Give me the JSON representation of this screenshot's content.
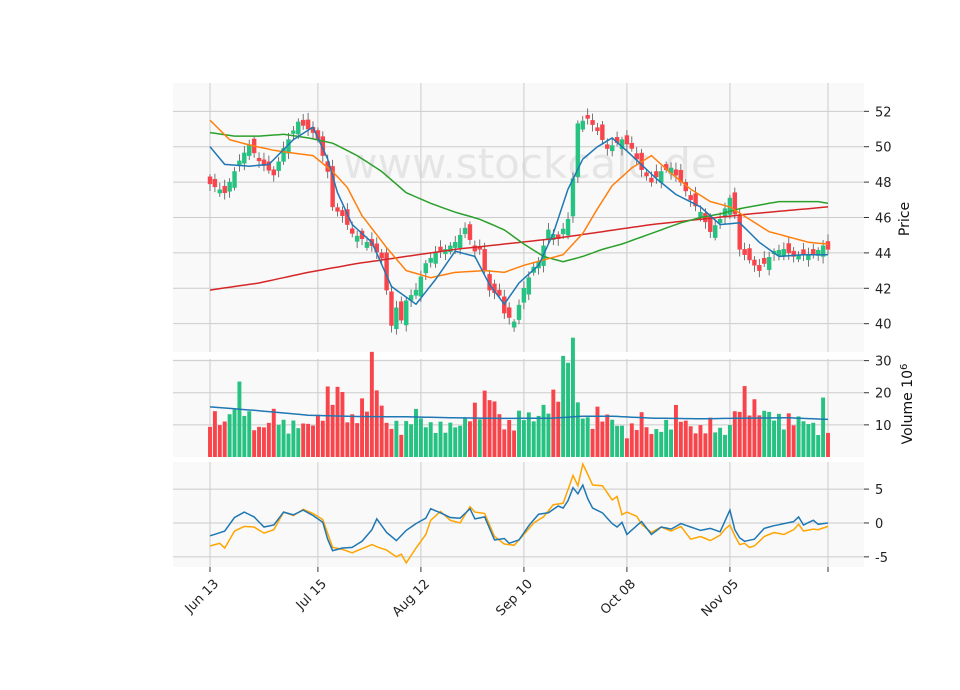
{
  "chart_data": {
    "type": "candlestick",
    "watermark": "www.stockcalc.de",
    "dates": [
      "Jun 13",
      "Jul 15",
      "Aug 12",
      "Sep 10",
      "Oct 08",
      "Nov 05"
    ],
    "date_tick_positions": [
      0,
      22,
      43,
      64,
      85,
      106
    ],
    "n_bars": 127,
    "price_axis": {
      "label": "Price",
      "ticks": [
        40,
        42,
        44,
        46,
        48,
        50,
        52
      ],
      "ylim": [
        38.4,
        53.6
      ]
    },
    "volume_axis": {
      "label": "Volume",
      "unit_exponent": "6",
      "ticks": [
        10,
        20,
        30
      ],
      "ylim": [
        0,
        30.5
      ]
    },
    "oscillator_axis": {
      "ticks": [
        -5,
        0,
        5
      ],
      "ylim": [
        -6.5,
        9
      ]
    },
    "colors": {
      "up": "#26c281",
      "down": "#f8454c",
      "ma_blue": "#1f77b4",
      "ma_orange": "#ff7f0e",
      "ma_green": "#2ca02c",
      "ma_red": "#d62728",
      "osc_a": "#1f77b4",
      "osc_b": "#ffa500",
      "grid": "#cccccc",
      "panel_bg": "#f9f9f9"
    },
    "close_anchors": [
      [
        0,
        47.9
      ],
      [
        3,
        47.4
      ],
      [
        6,
        49.2
      ],
      [
        8,
        50.1
      ],
      [
        10,
        49.2
      ],
      [
        13,
        48.4
      ],
      [
        15,
        49.9
      ],
      [
        18,
        51.4
      ],
      [
        20,
        51.0
      ],
      [
        21,
        50.8
      ],
      [
        22,
        50.4
      ],
      [
        24,
        48.6
      ],
      [
        25,
        46.6
      ],
      [
        27,
        46.1
      ],
      [
        29,
        45.1
      ],
      [
        31,
        44.8
      ],
      [
        33,
        44.4
      ],
      [
        35,
        43.7
      ],
      [
        36,
        41.9
      ],
      [
        37,
        39.9
      ],
      [
        38,
        40.9
      ],
      [
        39,
        40.2
      ],
      [
        40,
        41.3
      ],
      [
        42,
        41.9
      ],
      [
        44,
        43.4
      ],
      [
        46,
        44.0
      ],
      [
        48,
        44.2
      ],
      [
        50,
        44.6
      ],
      [
        52,
        45.4
      ],
      [
        54,
        44.1
      ],
      [
        55,
        44.2
      ],
      [
        57,
        41.9
      ],
      [
        59,
        41.6
      ],
      [
        60,
        40.6
      ],
      [
        62,
        40.1
      ],
      [
        64,
        42.0
      ],
      [
        66,
        43.2
      ],
      [
        67,
        43.5
      ],
      [
        69,
        45.3
      ],
      [
        71,
        44.8
      ],
      [
        73,
        45.9
      ],
      [
        74,
        48.2
      ],
      [
        75,
        51.3
      ],
      [
        77,
        51.6
      ],
      [
        79,
        50.9
      ],
      [
        81,
        49.9
      ],
      [
        84,
        50.4
      ],
      [
        86,
        49.9
      ],
      [
        88,
        48.7
      ],
      [
        90,
        48.0
      ],
      [
        92,
        48.6
      ],
      [
        94,
        48.8
      ],
      [
        96,
        48.0
      ],
      [
        98,
        47.0
      ],
      [
        100,
        46.3
      ],
      [
        102,
        45.2
      ],
      [
        104,
        45.9
      ],
      [
        106,
        47.1
      ],
      [
        107,
        46.2
      ],
      [
        108,
        44.2
      ],
      [
        110,
        43.6
      ],
      [
        112,
        43.0
      ],
      [
        113,
        43.4
      ],
      [
        115,
        44.1
      ],
      [
        117,
        44.2
      ],
      [
        119,
        43.8
      ],
      [
        121,
        43.9
      ],
      [
        123,
        43.9
      ],
      [
        125,
        44.4
      ],
      [
        126,
        44.2
      ]
    ],
    "volume_anchors": [
      [
        0,
        12.5
      ],
      [
        3,
        9.5
      ],
      [
        5,
        14.5
      ],
      [
        6,
        19.3
      ],
      [
        8,
        11.4
      ],
      [
        10,
        7.8
      ],
      [
        12,
        9.8
      ],
      [
        13,
        12.7
      ],
      [
        15,
        9.3
      ],
      [
        20,
        9.1
      ],
      [
        22,
        10.7
      ],
      [
        24,
        17.6
      ],
      [
        27,
        18.8
      ],
      [
        28,
        10.2
      ],
      [
        30,
        12.0
      ],
      [
        32,
        17.2
      ],
      [
        33,
        26.8
      ],
      [
        35,
        14.3
      ],
      [
        36,
        9.2
      ],
      [
        40,
        9.0
      ],
      [
        42,
        12.8
      ],
      [
        44,
        9.0
      ],
      [
        47,
        8.8
      ],
      [
        51,
        8.9
      ],
      [
        57,
        18.3
      ],
      [
        60,
        8.6
      ],
      [
        62,
        10.2
      ],
      [
        64,
        12.9
      ],
      [
        66,
        10.4
      ],
      [
        70,
        16.8
      ],
      [
        72,
        25.7
      ],
      [
        74,
        33.0
      ],
      [
        75,
        14.8
      ],
      [
        77,
        10.0
      ],
      [
        79,
        12.6
      ],
      [
        82,
        10.6
      ],
      [
        85,
        6.8
      ],
      [
        88,
        11.5
      ],
      [
        90,
        6.5
      ],
      [
        93,
        9.3
      ],
      [
        95,
        13.1
      ],
      [
        97,
        9.8
      ],
      [
        99,
        7.3
      ],
      [
        102,
        9.8
      ],
      [
        105,
        6.5
      ],
      [
        107,
        12.0
      ],
      [
        108,
        15.6
      ],
      [
        109,
        17.7
      ],
      [
        112,
        13.1
      ],
      [
        114,
        12.3
      ],
      [
        116,
        10.9
      ],
      [
        118,
        10.9
      ],
      [
        120,
        10.7
      ],
      [
        122,
        9.8
      ],
      [
        124,
        7.9
      ],
      [
        125,
        14.8
      ],
      [
        126,
        9.0
      ]
    ],
    "volume_ma_anchors": [
      [
        0,
        15.6
      ],
      [
        10,
        14.4
      ],
      [
        20,
        13.0
      ],
      [
        30,
        12.6
      ],
      [
        40,
        12.5
      ],
      [
        50,
        12.2
      ],
      [
        60,
        12.0
      ],
      [
        70,
        12.1
      ],
      [
        76,
        12.7
      ],
      [
        82,
        12.7
      ],
      [
        90,
        12.1
      ],
      [
        100,
        11.9
      ],
      [
        110,
        12.1
      ],
      [
        118,
        12.2
      ],
      [
        126,
        11.7
      ]
    ],
    "ma_short_anchors": [
      [
        0,
        50.0
      ],
      [
        3,
        49.0
      ],
      [
        8,
        48.9
      ],
      [
        12,
        49.0
      ],
      [
        17,
        50.4
      ],
      [
        21,
        51.1
      ],
      [
        24,
        49.3
      ],
      [
        26,
        47.4
      ],
      [
        29,
        45.6
      ],
      [
        33,
        44.6
      ],
      [
        37,
        42.1
      ],
      [
        42,
        41.1
      ],
      [
        46,
        42.5
      ],
      [
        50,
        44.1
      ],
      [
        54,
        43.8
      ],
      [
        57,
        42.2
      ],
      [
        60,
        41.1
      ],
      [
        63,
        42.3
      ],
      [
        67,
        43.3
      ],
      [
        70,
        45.1
      ],
      [
        73,
        47.6
      ],
      [
        76,
        49.3
      ],
      [
        79,
        50.0
      ],
      [
        82,
        50.5
      ],
      [
        86,
        49.5
      ],
      [
        91,
        48.2
      ],
      [
        95,
        47.3
      ],
      [
        100,
        46.6
      ],
      [
        104,
        45.6
      ],
      [
        108,
        45.7
      ],
      [
        112,
        44.6
      ],
      [
        116,
        43.8
      ],
      [
        121,
        43.9
      ],
      [
        126,
        43.9
      ]
    ],
    "ma_mid_anchors": [
      [
        0,
        51.5
      ],
      [
        4,
        50.4
      ],
      [
        8,
        50.1
      ],
      [
        13,
        49.8
      ],
      [
        18,
        49.6
      ],
      [
        21,
        49.5
      ],
      [
        25,
        48.6
      ],
      [
        28,
        47.7
      ],
      [
        31,
        46.1
      ],
      [
        36,
        44.3
      ],
      [
        40,
        43.0
      ],
      [
        45,
        42.6
      ],
      [
        50,
        42.9
      ],
      [
        56,
        43.0
      ],
      [
        60,
        42.9
      ],
      [
        64,
        43.3
      ],
      [
        68,
        43.6
      ],
      [
        72,
        43.9
      ],
      [
        76,
        45.1
      ],
      [
        79,
        46.5
      ],
      [
        82,
        47.8
      ],
      [
        86,
        48.8
      ],
      [
        90,
        49.5
      ],
      [
        94,
        48.5
      ],
      [
        98,
        47.6
      ],
      [
        102,
        46.9
      ],
      [
        106,
        46.6
      ],
      [
        110,
        45.9
      ],
      [
        114,
        45.2
      ],
      [
        118,
        44.9
      ],
      [
        122,
        44.6
      ],
      [
        126,
        44.5
      ]
    ],
    "ma_long_anchors": [
      [
        0,
        50.8
      ],
      [
        5,
        50.6
      ],
      [
        10,
        50.6
      ],
      [
        15,
        50.7
      ],
      [
        20,
        50.5
      ],
      [
        25,
        50.2
      ],
      [
        30,
        49.5
      ],
      [
        35,
        48.6
      ],
      [
        40,
        47.4
      ],
      [
        45,
        46.8
      ],
      [
        50,
        46.3
      ],
      [
        55,
        45.9
      ],
      [
        60,
        45.3
      ],
      [
        64,
        44.5
      ],
      [
        68,
        43.8
      ],
      [
        72,
        43.5
      ],
      [
        76,
        43.8
      ],
      [
        80,
        44.2
      ],
      [
        84,
        44.5
      ],
      [
        88,
        44.9
      ],
      [
        92,
        45.3
      ],
      [
        96,
        45.7
      ],
      [
        100,
        46.0
      ],
      [
        104,
        46.2
      ],
      [
        108,
        46.5
      ],
      [
        112,
        46.7
      ],
      [
        116,
        46.9
      ],
      [
        120,
        46.9
      ],
      [
        124,
        46.9
      ],
      [
        126,
        46.8
      ]
    ],
    "ma_trend_anchors": [
      [
        0,
        41.9
      ],
      [
        10,
        42.3
      ],
      [
        20,
        42.9
      ],
      [
        30,
        43.4
      ],
      [
        40,
        43.8
      ],
      [
        50,
        44.2
      ],
      [
        60,
        44.5
      ],
      [
        70,
        44.8
      ],
      [
        80,
        45.2
      ],
      [
        90,
        45.6
      ],
      [
        100,
        45.9
      ],
      [
        110,
        46.2
      ],
      [
        126,
        46.6
      ]
    ],
    "osc_line_a_anchors": [
      [
        0,
        -1.9
      ],
      [
        3,
        -1.2
      ],
      [
        5,
        0.8
      ],
      [
        7,
        1.6
      ],
      [
        9,
        0.9
      ],
      [
        11,
        -0.6
      ],
      [
        13,
        -0.3
      ],
      [
        15,
        1.6
      ],
      [
        17,
        1.2
      ],
      [
        19,
        1.9
      ],
      [
        21,
        1.1
      ],
      [
        23,
        0.1
      ],
      [
        24,
        -2.4
      ],
      [
        25,
        -4.1
      ],
      [
        27,
        -3.7
      ],
      [
        29,
        -3.6
      ],
      [
        31,
        -2.7
      ],
      [
        33,
        -1.0
      ],
      [
        34,
        0.6
      ],
      [
        36,
        -1.4
      ],
      [
        38,
        -2.6
      ],
      [
        40,
        -1.1
      ],
      [
        42,
        -0.1
      ],
      [
        44,
        0.7
      ],
      [
        45,
        2.1
      ],
      [
        47,
        1.5
      ],
      [
        49,
        0.8
      ],
      [
        51,
        0.7
      ],
      [
        53,
        2.1
      ],
      [
        54,
        0.6
      ],
      [
        56,
        0.9
      ],
      [
        58,
        -2.5
      ],
      [
        60,
        -2.3
      ],
      [
        61,
        -3.0
      ],
      [
        63,
        -2.5
      ],
      [
        65,
        -0.4
      ],
      [
        67,
        1.3
      ],
      [
        69,
        1.5
      ],
      [
        71,
        2.5
      ],
      [
        72,
        2.2
      ],
      [
        73,
        3.3
      ],
      [
        74,
        5.2
      ],
      [
        75,
        4.3
      ],
      [
        76,
        5.6
      ],
      [
        77,
        3.6
      ],
      [
        78,
        2.2
      ],
      [
        80,
        1.5
      ],
      [
        82,
        -0.1
      ],
      [
        83,
        -0.6
      ],
      [
        84,
        0.1
      ],
      [
        85,
        -1.7
      ],
      [
        87,
        -0.4
      ],
      [
        88,
        0.2
      ],
      [
        90,
        -1.7
      ],
      [
        92,
        -0.6
      ],
      [
        94,
        -0.9
      ],
      [
        96,
        -0.1
      ],
      [
        98,
        -0.6
      ],
      [
        100,
        -1.1
      ],
      [
        102,
        -0.8
      ],
      [
        104,
        -1.3
      ],
      [
        105,
        0.3
      ],
      [
        106,
        1.9
      ],
      [
        107,
        -1.0
      ],
      [
        108,
        -2.2
      ],
      [
        109,
        -2.7
      ],
      [
        111,
        -2.4
      ],
      [
        113,
        -0.8
      ],
      [
        115,
        -0.4
      ],
      [
        117,
        -0.1
      ],
      [
        119,
        0.2
      ],
      [
        120,
        0.9
      ],
      [
        121,
        -0.3
      ],
      [
        123,
        0.4
      ],
      [
        124,
        -0.2
      ],
      [
        126,
        0.0
      ]
    ],
    "osc_line_b_anchors": [
      [
        0,
        -3.4
      ],
      [
        2,
        -3.0
      ],
      [
        3,
        -3.7
      ],
      [
        5,
        -1.2
      ],
      [
        7,
        -0.5
      ],
      [
        9,
        -0.6
      ],
      [
        11,
        -1.5
      ],
      [
        13,
        -1.0
      ],
      [
        15,
        1.6
      ],
      [
        17,
        1.1
      ],
      [
        19,
        2.0
      ],
      [
        21,
        1.4
      ],
      [
        23,
        0.5
      ],
      [
        25,
        -3.6
      ],
      [
        27,
        -3.9
      ],
      [
        29,
        -4.4
      ],
      [
        31,
        -3.8
      ],
      [
        33,
        -3.2
      ],
      [
        34,
        -3.5
      ],
      [
        36,
        -4.0
      ],
      [
        38,
        -5.0
      ],
      [
        39,
        -4.6
      ],
      [
        40,
        -5.9
      ],
      [
        42,
        -3.7
      ],
      [
        44,
        -1.7
      ],
      [
        45,
        0.4
      ],
      [
        47,
        1.7
      ],
      [
        49,
        0.4
      ],
      [
        51,
        0.0
      ],
      [
        53,
        2.4
      ],
      [
        54,
        1.6
      ],
      [
        56,
        1.4
      ],
      [
        58,
        -2.0
      ],
      [
        60,
        -3.1
      ],
      [
        62,
        -3.3
      ],
      [
        64,
        -1.7
      ],
      [
        66,
        0.0
      ],
      [
        68,
        0.9
      ],
      [
        70,
        2.7
      ],
      [
        72,
        2.9
      ],
      [
        73,
        4.9
      ],
      [
        74,
        7.0
      ],
      [
        75,
        5.5
      ],
      [
        76,
        8.7
      ],
      [
        77,
        7.2
      ],
      [
        78,
        5.6
      ],
      [
        80,
        5.5
      ],
      [
        82,
        3.4
      ],
      [
        83,
        3.9
      ],
      [
        84,
        1.2
      ],
      [
        85,
        1.6
      ],
      [
        87,
        1.0
      ],
      [
        88,
        -0.2
      ],
      [
        90,
        -1.4
      ],
      [
        92,
        -0.6
      ],
      [
        94,
        -1.2
      ],
      [
        96,
        -0.5
      ],
      [
        98,
        -2.4
      ],
      [
        100,
        -2.0
      ],
      [
        102,
        -2.6
      ],
      [
        104,
        -1.8
      ],
      [
        105,
        -0.9
      ],
      [
        106,
        -0.3
      ],
      [
        107,
        -1.9
      ],
      [
        108,
        -3.2
      ],
      [
        109,
        -3.0
      ],
      [
        110,
        -3.6
      ],
      [
        111,
        -3.4
      ],
      [
        113,
        -2.0
      ],
      [
        115,
        -1.4
      ],
      [
        117,
        -1.7
      ],
      [
        119,
        -1.0
      ],
      [
        120,
        -0.2
      ],
      [
        121,
        -1.2
      ],
      [
        123,
        -0.9
      ],
      [
        124,
        -1.0
      ],
      [
        126,
        -0.5
      ]
    ]
  }
}
